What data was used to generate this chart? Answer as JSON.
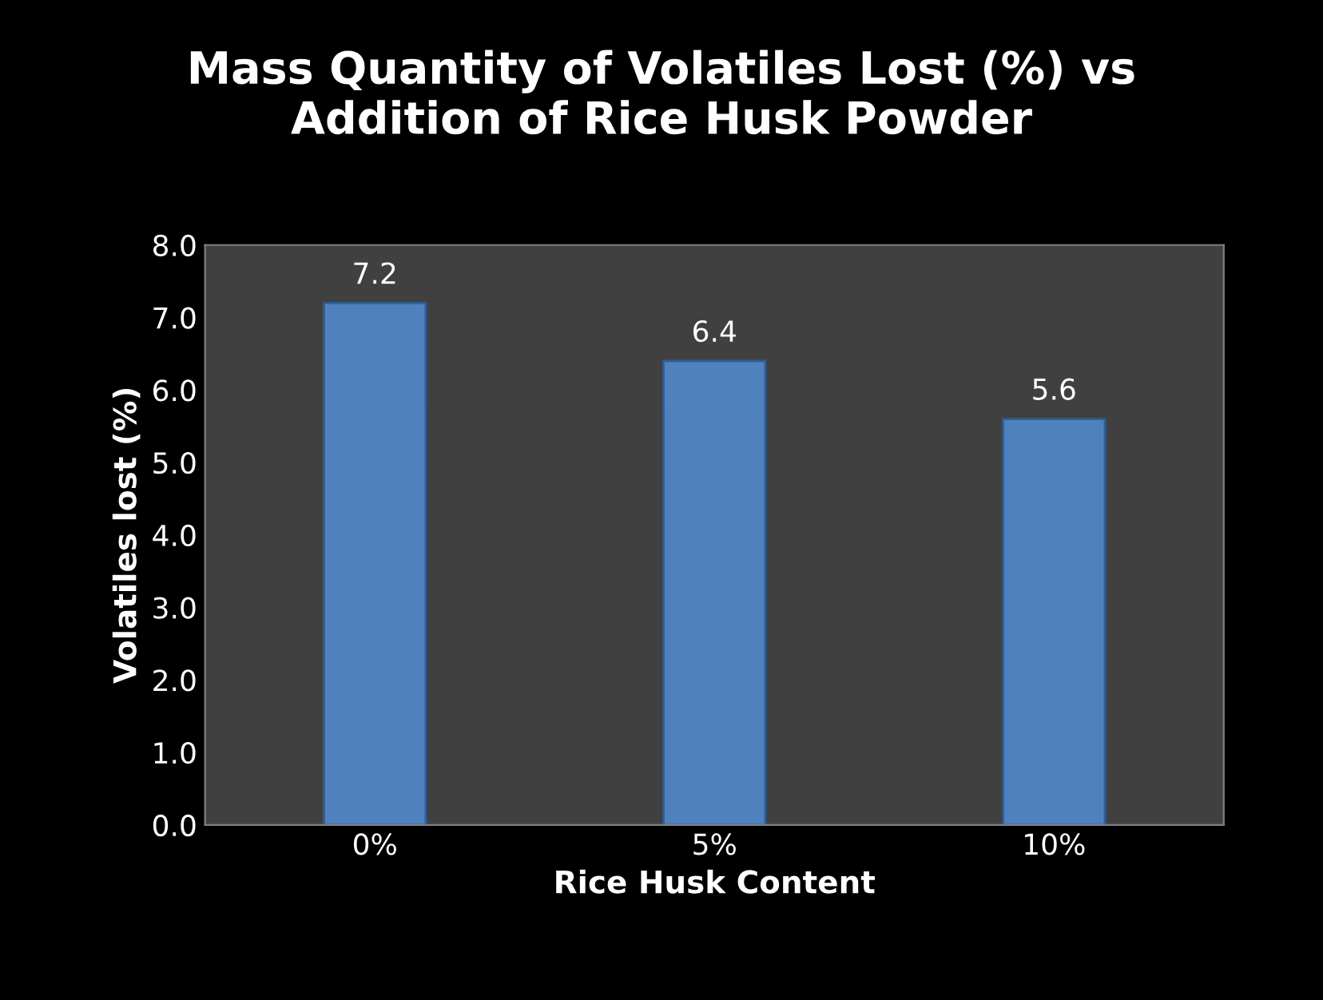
{
  "chart_data": {
    "type": "bar",
    "title": "Mass Quantity of Volatiles Lost (%) vs\nAddition of Rice Husk Powder",
    "xlabel": "Rice Husk Content",
    "ylabel": "Volatiles lost (%)",
    "categories": [
      "0%",
      "5%",
      "10%"
    ],
    "values": [
      7.2,
      6.4,
      5.6
    ],
    "color": "#4f81bd",
    "ylim": [
      0,
      8
    ],
    "yticks": [
      {
        "value": 0,
        "label": "0.0"
      },
      {
        "value": 1,
        "label": "1.0"
      },
      {
        "value": 2,
        "label": "2.0"
      },
      {
        "value": 3,
        "label": "3.0"
      },
      {
        "value": 4,
        "label": "4.0"
      },
      {
        "value": 5,
        "label": "5.0"
      },
      {
        "value": 6,
        "label": "6.0"
      },
      {
        "value": 7,
        "label": "7.0"
      },
      {
        "value": 8,
        "label": "8.0"
      }
    ],
    "data_labels": true,
    "grid": false,
    "legend": false
  }
}
